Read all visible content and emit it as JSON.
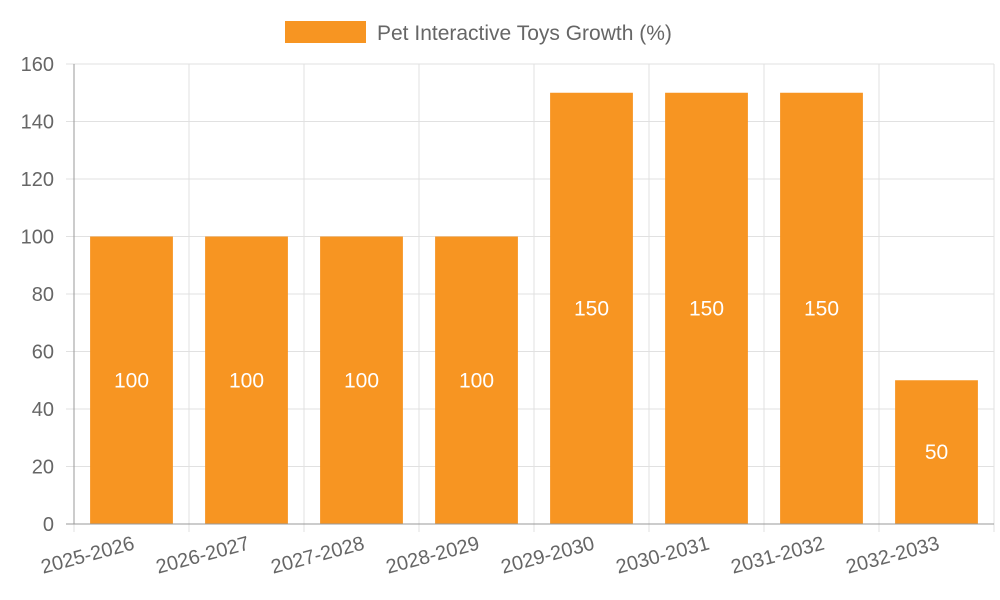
{
  "chart_data": {
    "type": "bar",
    "title": "",
    "xlabel": "",
    "ylabel": "",
    "categories": [
      "2025-2026",
      "2026-2027",
      "2027-2028",
      "2028-2029",
      "2029-2030",
      "2030-2031",
      "2031-2032",
      "2032-2033"
    ],
    "series": [
      {
        "name": "Pet Interactive Toys Growth (%)",
        "values": [
          100,
          100,
          100,
          100,
          150,
          150,
          150,
          50
        ],
        "color": "#f79522"
      }
    ],
    "ylim": [
      0,
      160
    ],
    "yticks": [
      0,
      20,
      40,
      60,
      80,
      100,
      120,
      140,
      160
    ],
    "grid": true,
    "legend_position": "top-center",
    "data_labels": true
  }
}
